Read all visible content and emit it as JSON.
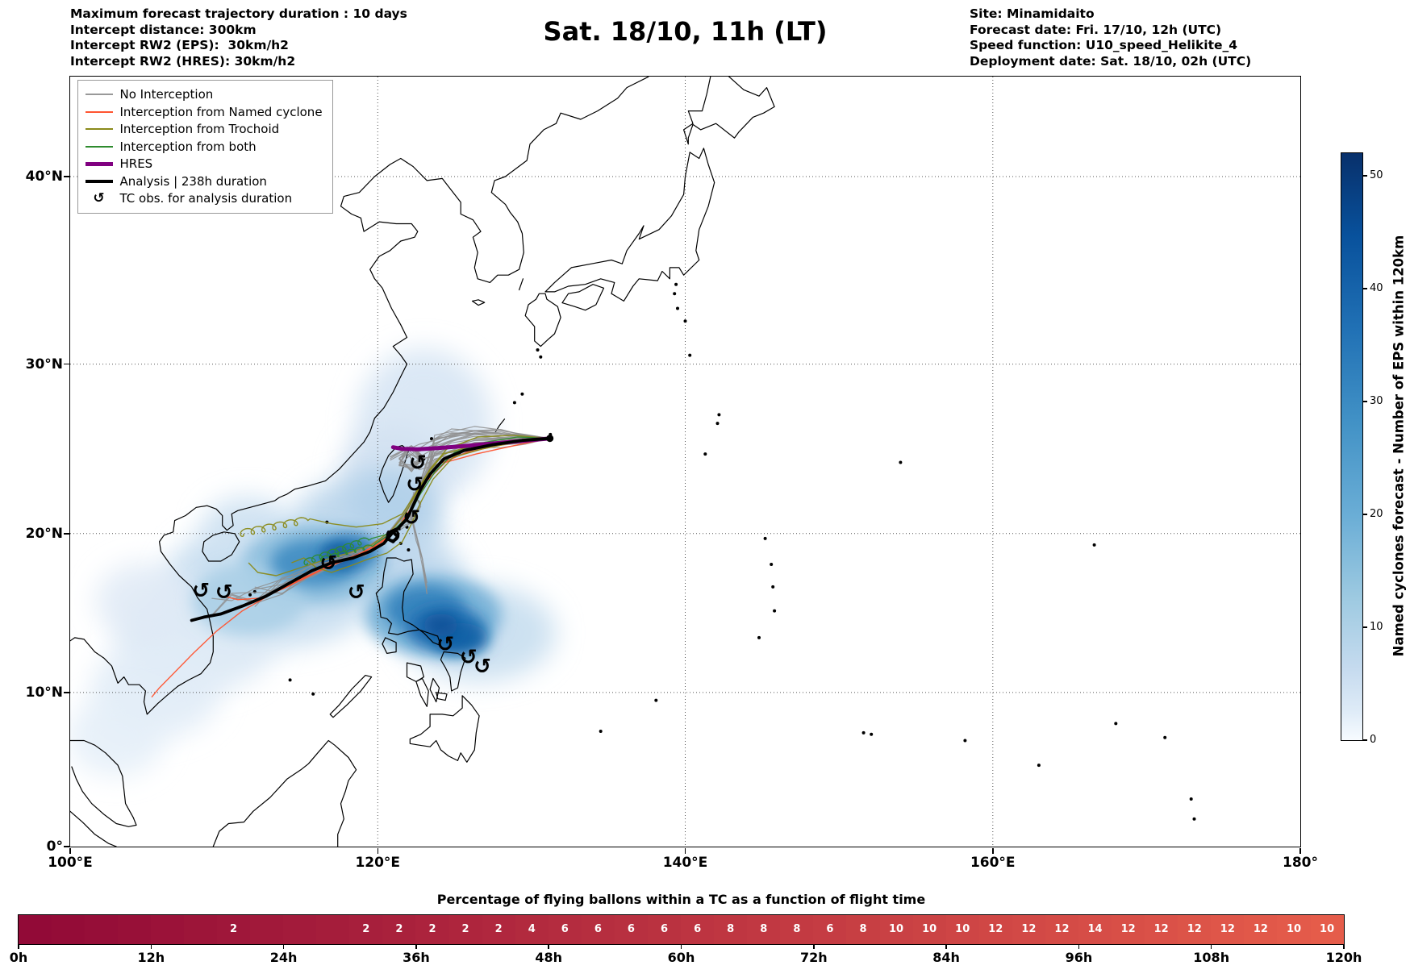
{
  "header": {
    "left_lines": [
      "Maximum forecast trajectory duration : 10 days",
      "Intercept distance: 300km",
      "Intercept RW2 (EPS):  30km/h2",
      "Intercept RW2 (HRES): 30km/h2"
    ],
    "title": "Sat. 18/10, 11h (LT)",
    "right_lines": [
      "Site: Minamidaito",
      "Forecast date: Fri. 17/10, 12h (UTC)",
      "Speed function: U10_speed_Helikite_4",
      "Deployment date: Sat. 18/10, 02h (UTC)"
    ]
  },
  "map": {
    "x_tick_labels": [
      "100°E",
      "120°E",
      "140°E",
      "160°E",
      "180°"
    ],
    "y_tick_labels": [
      "0°",
      "10°N",
      "20°N",
      "30°N",
      "40°N"
    ],
    "legend": [
      {
        "label": "No Interception",
        "color": "#999999",
        "lw": 2,
        "kind": "line"
      },
      {
        "label": "Interception from Named cyclone",
        "color": "#ff5430",
        "lw": 2,
        "kind": "line"
      },
      {
        "label": "Interception from Trochoid",
        "color": "#8a8a1a",
        "lw": 2,
        "kind": "line"
      },
      {
        "label": "Interception from both",
        "color": "#2e8b2e",
        "lw": 2,
        "kind": "line"
      },
      {
        "label": "HRES",
        "color": "#800080",
        "lw": 5,
        "kind": "line"
      },
      {
        "label": "Analysis | 238h duration",
        "color": "#000000",
        "lw": 4,
        "kind": "line"
      },
      {
        "label": "TC obs. for analysis duration",
        "glyph": "↺",
        "kind": "glyph"
      }
    ]
  },
  "colorbar": {
    "label": "Named cyclones forecast - Number of EPS within 120km",
    "ticks": [
      0,
      10,
      20,
      30,
      40,
      50
    ],
    "vmax": 52
  },
  "bottom": {
    "title": "Percentage of flying ballons within a TC as a function of flight time",
    "hour_labels": [
      "0h",
      "12h",
      "24h",
      "36h",
      "48h",
      "60h",
      "72h",
      "84h",
      "96h",
      "108h",
      "120h"
    ]
  },
  "chart_data": {
    "type": "composite",
    "map_panel": {
      "type": "trajectory_map",
      "extent": {
        "lon": [
          100,
          180
        ],
        "lat": [
          0,
          44.8
        ]
      },
      "x_ticks_deg": [
        100,
        120,
        140,
        160,
        180
      ],
      "y_ticks_deg": [
        0,
        10,
        20,
        30,
        40
      ],
      "site": {
        "name": "Minamidaito",
        "lon": 131.2,
        "lat": 25.72
      },
      "analysis_track_lonlat": [
        [
          131.2,
          25.72
        ],
        [
          129.4,
          25.6
        ],
        [
          127.5,
          25.35
        ],
        [
          125.6,
          25.0
        ],
        [
          124.3,
          24.5
        ],
        [
          123.4,
          23.6
        ],
        [
          122.8,
          22.7
        ],
        [
          122.3,
          21.7
        ],
        [
          121.9,
          20.9
        ],
        [
          121.3,
          20.3
        ],
        [
          120.8,
          20.1
        ],
        [
          120.6,
          19.7
        ],
        [
          121.0,
          19.5
        ],
        [
          121.3,
          19.8
        ],
        [
          121.0,
          20.1
        ],
        [
          120.4,
          19.4
        ],
        [
          119.5,
          18.9
        ],
        [
          118.4,
          18.5
        ],
        [
          117.0,
          18.2
        ],
        [
          115.7,
          17.7
        ],
        [
          114.2,
          16.9
        ],
        [
          112.7,
          16.1
        ],
        [
          111.2,
          15.5
        ],
        [
          109.8,
          15.0
        ],
        [
          108.7,
          14.8
        ],
        [
          107.9,
          14.6
        ]
      ],
      "hres_track_lonlat": [
        [
          131.2,
          25.72
        ],
        [
          129.2,
          25.55
        ],
        [
          127.2,
          25.4
        ],
        [
          125.4,
          25.25
        ],
        [
          123.9,
          25.15
        ],
        [
          122.6,
          25.08
        ],
        [
          121.6,
          25.1
        ],
        [
          121.0,
          25.2
        ]
      ],
      "tc_obs_lonlat": [
        [
          122.6,
          24.3
        ],
        [
          122.4,
          23.0
        ],
        [
          122.2,
          21.0
        ],
        [
          121.0,
          19.9
        ],
        [
          118.6,
          16.4
        ],
        [
          116.8,
          18.2
        ],
        [
          110.0,
          16.4
        ],
        [
          108.5,
          16.5
        ],
        [
          124.4,
          13.1
        ],
        [
          125.9,
          12.3
        ],
        [
          126.8,
          11.7
        ]
      ],
      "ensemble_description": "~30 EPS balloon trajectories launched from Minamidaito drifting west toward Taiwan, branching southwest across the Luzon Strait and South China Sea toward Vietnam",
      "density_shading": {
        "label": "Named cyclones forecast - Number of EPS within 120km",
        "vmin": 0,
        "vmax": 52,
        "colormap": "Blues",
        "maxima_regions_lonlat": [
          [
            117.3,
            18.6
          ],
          [
            124.1,
            14.3
          ]
        ]
      }
    },
    "flight_time_strip": {
      "type": "heatmap",
      "title": "Percentage of flying ballons within a TC as a function of flight time",
      "x_unit": "hours",
      "bin_width_h": 3,
      "x_range_h": [
        0,
        120
      ],
      "tick_labels": [
        "0h",
        "12h",
        "24h",
        "36h",
        "48h",
        "60h",
        "72h",
        "84h",
        "96h",
        "108h",
        "120h"
      ],
      "values_percent": [
        0,
        0,
        0,
        0,
        0,
        0,
        2,
        0,
        0,
        0,
        2,
        2,
        2,
        2,
        2,
        4,
        6,
        6,
        6,
        6,
        6,
        8,
        8,
        8,
        6,
        8,
        10,
        10,
        10,
        12,
        12,
        12,
        14,
        12,
        12,
        12,
        12,
        12,
        10,
        10
      ]
    }
  }
}
